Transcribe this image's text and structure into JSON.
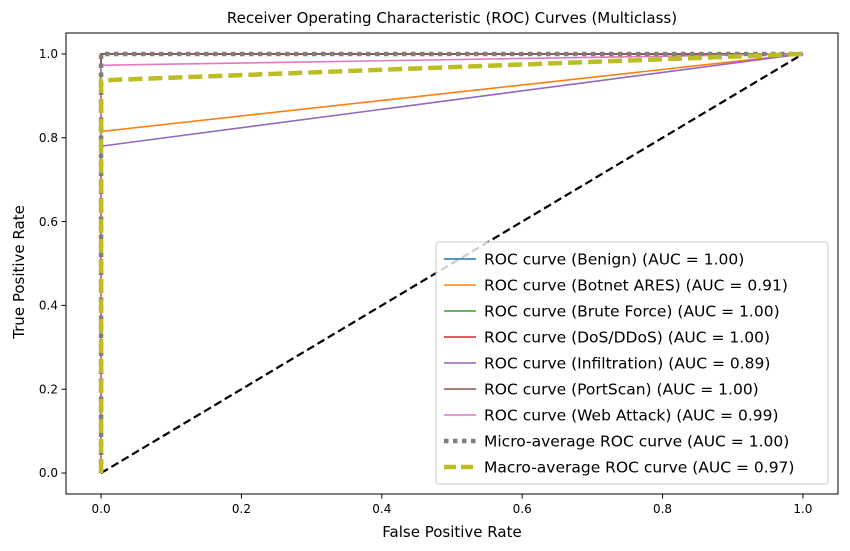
{
  "chart_data": {
    "type": "line",
    "title": "Receiver Operating Characteristic (ROC) Curves (Multiclass)",
    "xlabel": "False Positive Rate",
    "ylabel": "True Positive Rate",
    "xlim": [
      -0.05,
      1.05
    ],
    "ylim": [
      -0.05,
      1.05
    ],
    "xticks": [
      "0.0",
      "0.2",
      "0.4",
      "0.6",
      "0.8",
      "1.0"
    ],
    "yticks": [
      "0.0",
      "0.2",
      "0.4",
      "0.6",
      "0.8",
      "1.0"
    ],
    "grid": false,
    "legend_position": "lower right",
    "series": [
      {
        "name": "ROC curve (Benign) (AUC = 1.00)",
        "color": "#1f77b4",
        "style": "solid",
        "x": [
          0,
          0,
          1
        ],
        "y": [
          0,
          1,
          1
        ]
      },
      {
        "name": "ROC curve (Botnet ARES) (AUC = 0.91)",
        "color": "#ff7f0e",
        "style": "solid",
        "x": [
          0,
          0,
          1
        ],
        "y": [
          0,
          0.815,
          1
        ]
      },
      {
        "name": "ROC curve (Brute Force) (AUC = 1.00)",
        "color": "#2ca02c",
        "style": "solid",
        "x": [
          0,
          0,
          1
        ],
        "y": [
          0,
          1,
          1
        ]
      },
      {
        "name": "ROC curve (DoS/DDoS) (AUC = 1.00)",
        "color": "#d62728",
        "style": "solid",
        "x": [
          0,
          0,
          1
        ],
        "y": [
          0,
          1,
          1
        ]
      },
      {
        "name": "ROC curve (Infiltration) (AUC = 0.89)",
        "color": "#9467bd",
        "style": "solid",
        "x": [
          0,
          0,
          1
        ],
        "y": [
          0,
          0.78,
          1
        ]
      },
      {
        "name": "ROC curve (PortScan) (AUC = 1.00)",
        "color": "#8c564b",
        "style": "solid",
        "x": [
          0,
          0,
          1
        ],
        "y": [
          0,
          1,
          1
        ]
      },
      {
        "name": "ROC curve (Web Attack) (AUC = 0.99)",
        "color": "#e377c2",
        "style": "solid",
        "x": [
          0,
          0,
          1
        ],
        "y": [
          0,
          0.973,
          1
        ]
      },
      {
        "name": "Micro-average ROC curve (AUC = 1.00)",
        "color": "#7f7f7f",
        "style": "dotted",
        "x": [
          0,
          0,
          1
        ],
        "y": [
          0,
          1,
          1
        ]
      },
      {
        "name": "Macro-average ROC curve (AUC = 0.97)",
        "color": "#bcbd22",
        "style": "dashed",
        "x": [
          0,
          0,
          1
        ],
        "y": [
          0,
          0.937,
          1
        ]
      }
    ],
    "reference_line": {
      "color": "#000000",
      "style": "dashed",
      "x": [
        0,
        1
      ],
      "y": [
        0,
        1
      ]
    }
  }
}
